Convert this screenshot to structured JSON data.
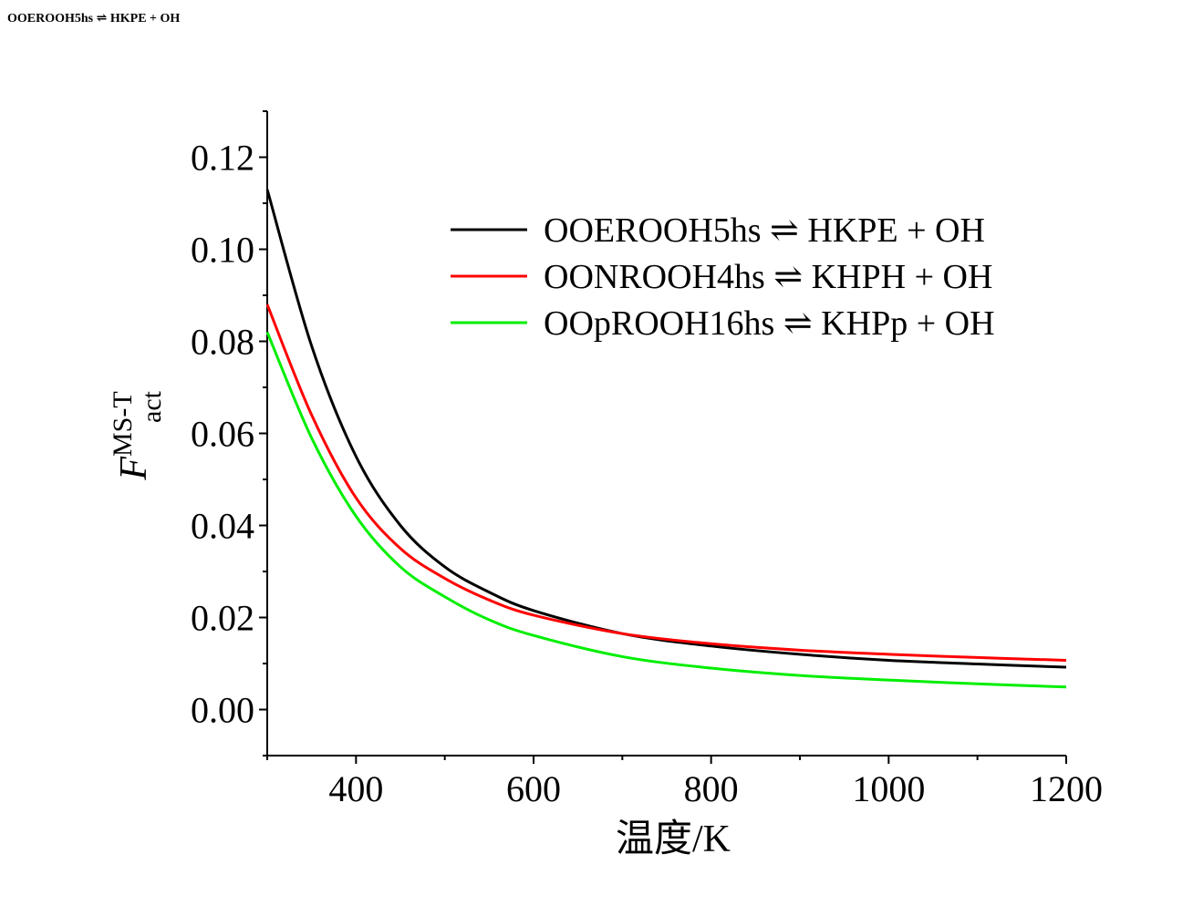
{
  "header": {
    "title": "OOEROOH5hs ⇌ HKPE + OH"
  },
  "chart_data": {
    "type": "line",
    "xlabel": "温度/K",
    "ylabel": {
      "main": "F",
      "superscript": "MS-T",
      "subscript": "act"
    },
    "xlim": [
      300,
      1200
    ],
    "ylim": [
      -0.01,
      0.13
    ],
    "x_ticks": [
      400,
      600,
      800,
      1000,
      1200
    ],
    "x_tick_labels": [
      "400",
      "600",
      "800",
      "1000",
      "1200"
    ],
    "y_ticks": [
      0.0,
      0.02,
      0.04,
      0.06,
      0.08,
      0.1,
      0.12
    ],
    "y_tick_labels": [
      "0.00",
      "0.02",
      "0.04",
      "0.06",
      "0.08",
      "0.10",
      "0.12"
    ],
    "grid": false,
    "legend_position": "upper-right",
    "x": [
      300,
      350,
      400,
      450,
      500,
      550,
      600,
      700,
      800,
      900,
      1000,
      1100,
      1200
    ],
    "series": [
      {
        "name": "OOEROOH5hs ⇌ HKPE + OH",
        "color": "#000000",
        "values": [
          0.113,
          0.079,
          0.055,
          0.04,
          0.031,
          0.0255,
          0.0215,
          0.0165,
          0.0138,
          0.012,
          0.0107,
          0.0099,
          0.0092
        ]
      },
      {
        "name": "OONROOH4hs ⇌ KHPH + OH",
        "color": "#ff0000",
        "values": [
          0.088,
          0.064,
          0.046,
          0.035,
          0.0285,
          0.0238,
          0.0205,
          0.0165,
          0.0143,
          0.0129,
          0.012,
          0.0113,
          0.0107
        ]
      },
      {
        "name": "OOpROOH16hs ⇌ KHPp + OH",
        "color": "#00ee00",
        "values": [
          0.082,
          0.059,
          0.042,
          0.031,
          0.0245,
          0.0195,
          0.0161,
          0.0115,
          0.009,
          0.0074,
          0.0064,
          0.0056,
          0.0049
        ]
      }
    ]
  }
}
